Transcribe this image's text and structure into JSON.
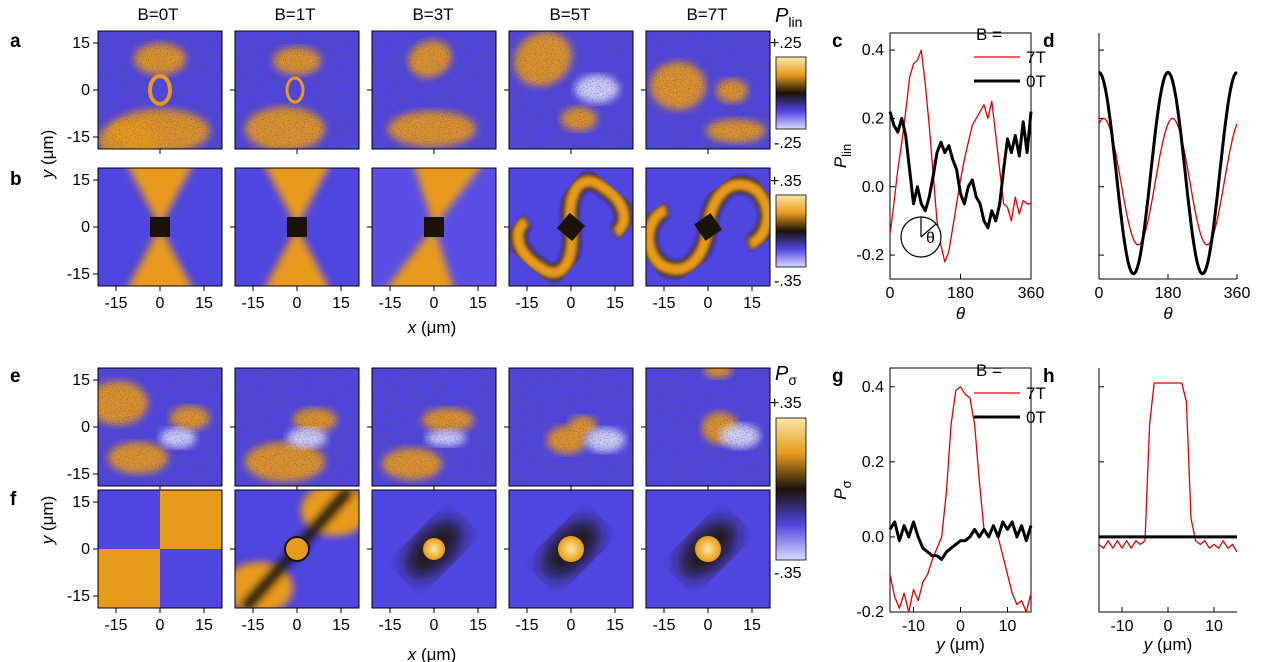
{
  "panel_labels": [
    "a",
    "b",
    "c",
    "d",
    "e",
    "f",
    "g",
    "h"
  ],
  "field_labels": [
    "B=0T",
    "B=1T",
    "B=3T",
    "B=5T",
    "B=7T"
  ],
  "colors": {
    "orange": "#e89a1c",
    "orange_light": "#fbe7a8",
    "blue": "#4f45e0",
    "blue_light": "#d9d9ff",
    "dark": "#1b1208",
    "red": "#e00000",
    "black": "#000000"
  },
  "maps": {
    "x_ticks": [
      "-15",
      "0",
      "15"
    ],
    "y_ticks": [
      "15",
      "0",
      "-15"
    ],
    "x_label": {
      "sym": "x",
      "unit": " (μm)"
    },
    "y_label": {
      "sym": "y",
      "unit": " (μm)"
    },
    "colorbars": [
      {
        "sym": "P",
        "sub": "lin",
        "top": "+.25",
        "bottom": "-.25"
      },
      {
        "top": "+.35",
        "bottom": "-.35"
      },
      {
        "sym": "P",
        "sub": "σ",
        "top": "+.35",
        "bottom": "-.35"
      },
      {
        "top": "+.35",
        "bottom": "-.35"
      }
    ]
  },
  "legend": {
    "title": "B =",
    "entries": [
      "7T",
      "0T"
    ]
  },
  "chart_data": [
    {
      "panel": "c",
      "type": "line",
      "xlabel": "θ",
      "ylabel": {
        "sym": "P",
        "sub": "lin"
      },
      "xlim": [
        0,
        360
      ],
      "ylim": [
        -0.27,
        0.45
      ],
      "x_ticks": [
        "0",
        "180",
        "360"
      ],
      "y_ticks": [
        "0.4",
        "0.2",
        "0.0",
        "-0.2"
      ],
      "inset_label": "θ",
      "series": [
        {
          "name": "7T",
          "color": "#e00000",
          "x": [
            0,
            10,
            20,
            30,
            40,
            50,
            60,
            70,
            80,
            90,
            100,
            110,
            120,
            130,
            140,
            150,
            160,
            170,
            180,
            190,
            200,
            210,
            220,
            230,
            240,
            250,
            260,
            270,
            280,
            290,
            300,
            310,
            320,
            330,
            340,
            350,
            360
          ],
          "y": [
            -0.14,
            -0.05,
            0.05,
            0.13,
            0.22,
            0.32,
            0.36,
            0.37,
            0.4,
            0.3,
            0.18,
            0.04,
            -0.1,
            -0.17,
            -0.22,
            -0.19,
            -0.12,
            -0.05,
            0.02,
            0.08,
            0.13,
            0.18,
            0.2,
            0.22,
            0.24,
            0.2,
            0.25,
            0.15,
            0.05,
            -0.05,
            -0.06,
            -0.1,
            -0.03,
            -0.08,
            -0.04,
            -0.05,
            -0.05
          ]
        },
        {
          "name": "0T",
          "color": "#000000",
          "x": [
            0,
            10,
            20,
            30,
            40,
            50,
            60,
            70,
            80,
            90,
            100,
            110,
            120,
            130,
            140,
            150,
            160,
            170,
            180,
            190,
            200,
            210,
            220,
            230,
            240,
            250,
            260,
            270,
            280,
            290,
            300,
            310,
            320,
            330,
            340,
            350,
            360
          ],
          "y": [
            0.22,
            0.18,
            0.16,
            0.2,
            0.15,
            0.05,
            -0.05,
            0.0,
            -0.05,
            -0.07,
            -0.03,
            0.03,
            0.1,
            0.13,
            0.1,
            0.12,
            0.08,
            0.05,
            -0.02,
            -0.05,
            0.0,
            0.02,
            -0.03,
            -0.05,
            -0.1,
            -0.12,
            -0.07,
            -0.1,
            -0.05,
            0.05,
            0.14,
            0.1,
            0.15,
            0.09,
            0.19,
            0.1,
            0.22
          ]
        }
      ]
    },
    {
      "panel": "d",
      "type": "line",
      "xlabel": "θ",
      "xlim": [
        0,
        360
      ],
      "ylim": [
        -0.27,
        0.45
      ],
      "x_ticks": [
        "0",
        "180",
        "360"
      ],
      "series": [
        {
          "name": "7T",
          "color": "#e00000",
          "offset": 0.015,
          "amplitude": 0.185,
          "phase_deg": 192
        },
        {
          "name": "0T",
          "color": "#000000",
          "offset": 0.04,
          "amplitude": 0.295,
          "phase_deg": 180
        }
      ]
    },
    {
      "panel": "g",
      "type": "line",
      "xlabel": {
        "sym": "y",
        "unit": " (μm)"
      },
      "ylabel": {
        "sym": "P",
        "sub": "σ"
      },
      "xlim": [
        -15,
        15
      ],
      "ylim": [
        -0.2,
        0.45
      ],
      "x_ticks": [
        "-10",
        "0",
        "10"
      ],
      "y_ticks": [
        "0.4",
        "0.2",
        "0.0",
        "-0.2"
      ],
      "series": [
        {
          "name": "7T",
          "color": "#e00000",
          "x": [
            -15,
            -14,
            -13,
            -12,
            -11,
            -10,
            -9,
            -8,
            -7,
            -6,
            -5,
            -4,
            -3,
            -2,
            -1,
            0,
            1,
            2,
            3,
            4,
            5,
            6,
            7,
            8,
            9,
            10,
            11,
            12,
            13,
            14,
            15
          ],
          "y": [
            -0.1,
            -0.16,
            -0.19,
            -0.15,
            -0.2,
            -0.14,
            -0.17,
            -0.12,
            -0.1,
            -0.06,
            -0.03,
            0.0,
            0.12,
            0.3,
            0.39,
            0.4,
            0.38,
            0.37,
            0.3,
            0.15,
            0.02,
            0.0,
            0.03,
            0.0,
            -0.05,
            -0.1,
            -0.15,
            -0.18,
            -0.17,
            -0.2,
            -0.15
          ]
        },
        {
          "name": "0T",
          "color": "#000000",
          "x": [
            -15,
            -14,
            -13,
            -12,
            -11,
            -10,
            -9,
            -8,
            -7,
            -6,
            -5,
            -4,
            -3,
            -2,
            -1,
            0,
            1,
            2,
            3,
            4,
            5,
            6,
            7,
            8,
            9,
            10,
            11,
            12,
            13,
            14,
            15
          ],
          "y": [
            0.02,
            0.04,
            -0.01,
            0.03,
            0.0,
            0.04,
            0.0,
            -0.03,
            -0.04,
            -0.05,
            -0.05,
            -0.06,
            -0.04,
            -0.03,
            -0.02,
            -0.01,
            -0.01,
            0.0,
            0.02,
            0.0,
            0.02,
            0.0,
            0.03,
            0.0,
            0.04,
            0.02,
            0.04,
            0.0,
            0.03,
            -0.01,
            0.03
          ]
        }
      ]
    },
    {
      "panel": "h",
      "type": "line",
      "xlabel": {
        "sym": "y",
        "unit": " (μm)"
      },
      "xlim": [
        -15,
        15
      ],
      "ylim": [
        -0.2,
        0.45
      ],
      "x_ticks": [
        "-10",
        "0",
        "10"
      ],
      "series": [
        {
          "name": "7T",
          "color": "#e00000",
          "x": [
            -15,
            -14,
            -13,
            -12,
            -11,
            -10,
            -9,
            -8,
            -7,
            -6,
            -5,
            -4,
            -3,
            -2,
            -1,
            0,
            1,
            2,
            3,
            4,
            5,
            6,
            7,
            8,
            9,
            10,
            11,
            12,
            13,
            14,
            15
          ],
          "y": [
            -0.02,
            -0.03,
            -0.01,
            -0.03,
            -0.01,
            -0.03,
            -0.01,
            -0.03,
            -0.01,
            -0.02,
            -0.01,
            0.3,
            0.41,
            0.41,
            0.41,
            0.41,
            0.41,
            0.41,
            0.41,
            0.36,
            0.05,
            -0.01,
            -0.02,
            -0.01,
            -0.03,
            -0.02,
            -0.03,
            -0.01,
            -0.03,
            -0.02,
            -0.04
          ]
        },
        {
          "name": "0T",
          "color": "#000000",
          "x": [
            -15,
            15
          ],
          "y": [
            0.0,
            0.0
          ]
        }
      ]
    }
  ]
}
